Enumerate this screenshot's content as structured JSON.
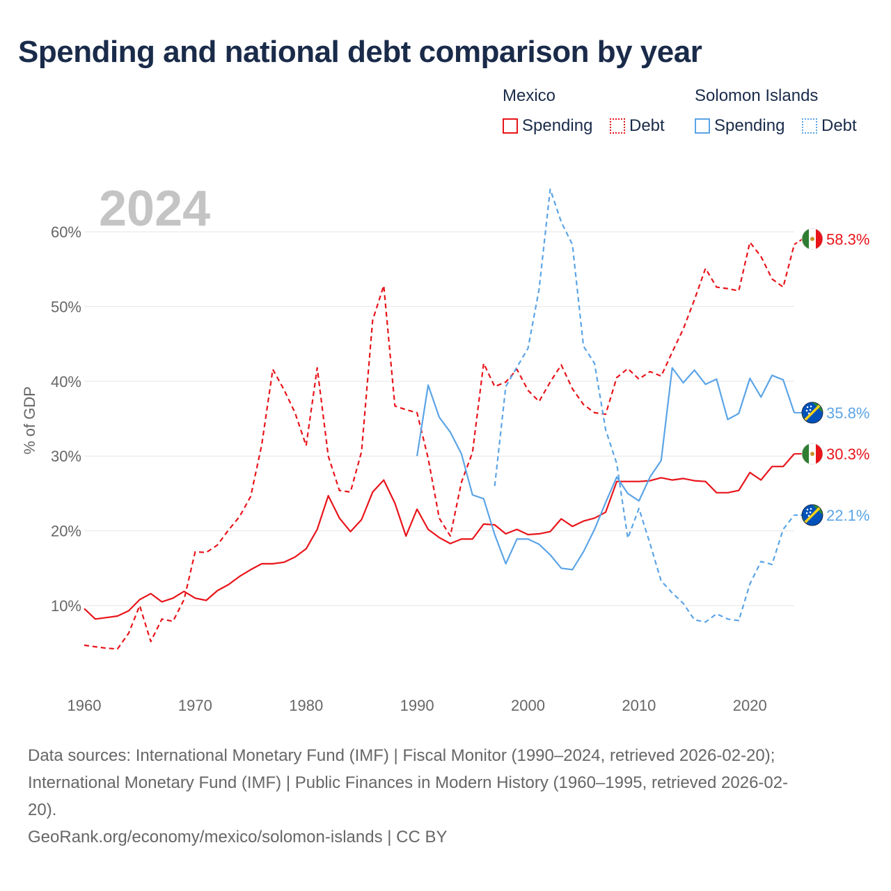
{
  "title": "Spending and national debt comparison by year",
  "legend": {
    "groups": [
      {
        "name": "Mexico",
        "items": [
          {
            "label": "Spending",
            "style": "solid",
            "color": "#e8141a"
          },
          {
            "label": "Debt",
            "style": "dotted",
            "color": "#e8141a"
          }
        ]
      },
      {
        "name": "Solomon Islands",
        "items": [
          {
            "label": "Spending",
            "style": "solid",
            "color": "#5ba4e6"
          },
          {
            "label": "Debt",
            "style": "dotted",
            "color": "#5ba4e6"
          }
        ]
      }
    ]
  },
  "colors": {
    "mexico": "#e8141a",
    "solomon": "#5ba4e6",
    "grid": "#e6e6e6",
    "axis_text": "#666666",
    "year_watermark": "#c4c4c4"
  },
  "sources": {
    "line1": "Data sources: International Monetary Fund (IMF) | Fiscal Monitor (1990–2024, retrieved 2026-02-20);",
    "line2": "International Monetary Fund (IMF) | Public Finances in Modern History (1960–1995, retrieved 2026-02-",
    "line3": "20).",
    "line4": "GeoRank.org/economy/mexico/solomon-islands | CC BY"
  },
  "chart_data": {
    "type": "line",
    "year_label": "2024",
    "ylabel": "% of GDP",
    "xlim": [
      1960,
      2024
    ],
    "ylim": [
      0,
      66
    ],
    "xticks": [
      1960,
      1970,
      1980,
      1990,
      2000,
      2010,
      2020
    ],
    "yticks": [
      10,
      20,
      30,
      40,
      50,
      60
    ],
    "ytick_labels": [
      "10%",
      "20%",
      "30%",
      "40%",
      "50%",
      "60%"
    ],
    "series": [
      {
        "name": "Mexico Spending",
        "country": "Mexico",
        "kind": "Spending",
        "style": "solid",
        "end_label": "30.3%",
        "start": 1960,
        "values": [
          9.6,
          8.2,
          8.4,
          8.6,
          9.3,
          10.8,
          11.6,
          10.5,
          11.0,
          11.9,
          11.0,
          10.7,
          12.0,
          12.8,
          13.9,
          14.8,
          15.6,
          15.6,
          15.8,
          16.5,
          17.6,
          20.2,
          24.7,
          21.7,
          19.9,
          21.5,
          25.2,
          26.8,
          23.7,
          19.3,
          22.9,
          20.2,
          19.1,
          18.3,
          18.9,
          18.9,
          20.9,
          20.8,
          19.6,
          20.2,
          19.5,
          19.6,
          19.9,
          21.6,
          20.6,
          21.3,
          21.7,
          22.5,
          26.6,
          26.6,
          26.6,
          26.7,
          27.1,
          26.8,
          27.0,
          26.7,
          26.6,
          25.1,
          25.1,
          25.4,
          27.8,
          26.8,
          28.6,
          28.6,
          30.3
        ]
      },
      {
        "name": "Mexico Debt",
        "country": "Mexico",
        "kind": "Debt",
        "style": "dashed",
        "end_label": "58.3%",
        "start": 1960,
        "values": [
          4.7,
          4.5,
          4.3,
          4.2,
          6.3,
          10.0,
          5.2,
          8.2,
          7.9,
          10.8,
          17.2,
          17.1,
          18.1,
          20.1,
          21.9,
          24.6,
          31.5,
          41.6,
          38.9,
          35.8,
          31.4,
          41.8,
          30.0,
          25.4,
          25.2,
          30.6,
          48.2,
          52.8,
          36.7,
          36.2,
          35.8,
          29.7,
          21.7,
          19.3,
          26.5,
          30.5,
          42.4,
          39.3,
          39.9,
          41.6,
          38.8,
          37.3,
          39.9,
          42.2,
          39.0,
          36.9,
          35.8,
          35.6,
          40.5,
          41.7,
          40.3,
          41.3,
          40.7,
          43.9,
          47.0,
          50.9,
          55.1,
          52.6,
          52.4,
          52.1,
          58.6,
          56.7,
          53.7,
          52.6,
          58.3
        ]
      },
      {
        "name": "Solomon Islands Spending",
        "country": "Solomon Islands",
        "kind": "Spending",
        "style": "solid",
        "end_label": "35.8%",
        "start": 1990,
        "values": [
          30.0,
          39.5,
          35.2,
          33.2,
          30.3,
          24.8,
          24.3,
          19.5,
          15.6,
          18.9,
          18.9,
          18.2,
          16.8,
          15.0,
          14.8,
          17.2,
          20.2,
          23.8,
          27.2,
          25.0,
          24.0,
          27.2,
          29.4,
          41.8,
          39.8,
          41.5,
          39.6,
          40.3,
          34.9,
          35.7,
          40.4,
          37.9,
          40.8,
          40.2,
          35.8
        ]
      },
      {
        "name": "Solomon Islands Debt",
        "country": "Solomon Islands",
        "kind": "Debt",
        "style": "dashed",
        "end_label": "22.1%",
        "start": 1997,
        "values": [
          26.0,
          39.3,
          41.9,
          44.4,
          52.3,
          65.7,
          61.3,
          58.3,
          44.7,
          42.4,
          33.5,
          29.0,
          19.0,
          23.0,
          18.3,
          13.3,
          11.7,
          10.3,
          8.1,
          7.8,
          8.9,
          8.2,
          8.0,
          12.9,
          15.9,
          15.5,
          20.2,
          22.1
        ]
      }
    ]
  }
}
